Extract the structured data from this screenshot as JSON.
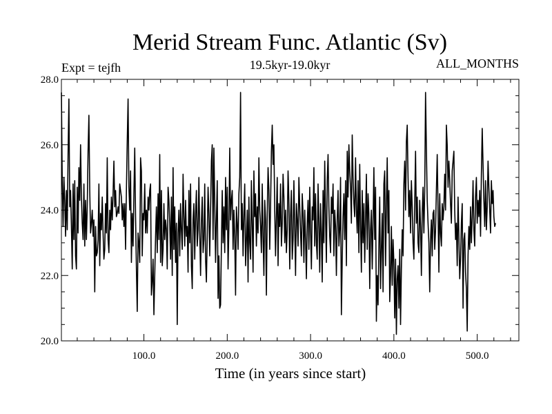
{
  "chart_data": {
    "type": "line",
    "title": "Merid Stream Func. Atlantic (Sv)",
    "subtitle": "19.5kyr-19.0kyr",
    "left_label": "Expt = tejfh",
    "right_label": "ALL_MONTHS",
    "xlabel": "Time (in years since start)",
    "ylabel": "",
    "xlim": [
      1,
      550
    ],
    "ylim": [
      20.0,
      28.0
    ],
    "x_ticks": [
      100,
      200,
      300,
      400,
      500
    ],
    "x_tick_labels": [
      "100.0",
      "200.0",
      "300.0",
      "400.0",
      "500.0"
    ],
    "y_ticks": [
      20,
      22,
      24,
      26,
      28
    ],
    "y_tick_labels": [
      "20.0",
      "22.0",
      "24.0",
      "26.0",
      "28.0"
    ],
    "grid": false,
    "line_color": "#000000",
    "series": [
      {
        "x_start": 1,
        "x_step": 1,
        "values": [
          27.6,
          24.9,
          23.5,
          25.0,
          24.3,
          23.2,
          24.6,
          23.4,
          25.7,
          27.4,
          24.1,
          24.6,
          23.5,
          22.2,
          24.8,
          23.1,
          24.9,
          22.6,
          22.2,
          24.7,
          23.3,
          25.3,
          24.3,
          26.0,
          24.4,
          23.6,
          23.1,
          24.8,
          22.9,
          24.3,
          23.1,
          24.1,
          25.8,
          26.9,
          24.6,
          23.3,
          23.6,
          24.0,
          23.2,
          23.7,
          21.5,
          23.5,
          22.6,
          22.7,
          23.1,
          24.8,
          22.3,
          23.9,
          23.4,
          24.4,
          23.3,
          22.5,
          22.8,
          24.2,
          23.3,
          25.6,
          23.1,
          22.7,
          24.0,
          23.4,
          24.4,
          23.7,
          24.5,
          25.5,
          24.1,
          24.6,
          23.8,
          23.9,
          24.1,
          23.9,
          24.8,
          24.6,
          24.4,
          23.7,
          24.2,
          23.5,
          24.2,
          22.8,
          24.6,
          26.1,
          27.4,
          24.7,
          24.0,
          25.2,
          22.4,
          23.9,
          22.9,
          24.5,
          25.9,
          23.8,
          22.2,
          20.9,
          23.3,
          23.0,
          22.4,
          25.6,
          25.2,
          22.6,
          23.9,
          23.7,
          24.8,
          23.3,
          24.0,
          23.3,
          24.4,
          24.0,
          24.6,
          24.8,
          21.4,
          21.8,
          22.5,
          20.8,
          22.0,
          23.2,
          24.1,
          22.7,
          24.5,
          23.1,
          25.7,
          22.4,
          24.6,
          22.3,
          22.8,
          24.2,
          23.1,
          23.7,
          23.4,
          22.2,
          24.7,
          24.3,
          23.6,
          22.5,
          24.4,
          22.0,
          25.3,
          22.8,
          24.1,
          22.4,
          23.6,
          20.5,
          23.3,
          24.0,
          22.6,
          24.2,
          23.4,
          22.8,
          25.1,
          23.8,
          22.9,
          24.3,
          23.2,
          23.5,
          22.1,
          24.6,
          23.0,
          24.8,
          22.3,
          21.6,
          23.7,
          24.2,
          22.5,
          23.9,
          24.6,
          22.9,
          23.4,
          25.0,
          23.3,
          22.0,
          23.6,
          24.4,
          22.7,
          23.1,
          24.8,
          22.5,
          21.8,
          23.2,
          24.7,
          23.9,
          22.6,
          24.0,
          25.5,
          26.0,
          23.1,
          25.9,
          24.2,
          22.4,
          23.7,
          24.9,
          21.3,
          22.6,
          21.0,
          21.1,
          22.9,
          24.6,
          23.0,
          24.1,
          22.7,
          25.0,
          23.4,
          24.7,
          22.2,
          23.5,
          25.9,
          23.7,
          24.3,
          24.6,
          22.8,
          24.0,
          23.2,
          21.4,
          24.1,
          23.6,
          22.8,
          24.5,
          25.0,
          27.6,
          23.4,
          24.2,
          22.6,
          23.9,
          24.8,
          22.3,
          23.1,
          24.0,
          21.8,
          24.4,
          23.0,
          22.5,
          24.9,
          23.6,
          22.1,
          25.2,
          23.8,
          24.5,
          22.9,
          24.1,
          23.3,
          25.6,
          24.0,
          23.5,
          22.7,
          24.8,
          23.2,
          22.0,
          24.3,
          23.7,
          21.4,
          23.9,
          25.3,
          24.6,
          22.8,
          24.1,
          25.8,
          26.6,
          25.4,
          26.0,
          24.0,
          22.6,
          23.8,
          25.0,
          22.3,
          24.2,
          23.5,
          24.8,
          22.9,
          23.6,
          25.1,
          24.4,
          23.0,
          24.0,
          22.7,
          23.4,
          25.2,
          24.3,
          22.2,
          23.8,
          24.6,
          22.5,
          23.1,
          24.9,
          23.5,
          22.0,
          24.2,
          23.7,
          22.9,
          25.0,
          24.1,
          23.3,
          22.6,
          24.5,
          23.9,
          22.4,
          24.0,
          23.1,
          21.9,
          23.6,
          24.3,
          22.8,
          24.7,
          23.4,
          22.2,
          24.1,
          23.7,
          25.3,
          22.9,
          24.5,
          23.0,
          22.5,
          24.8,
          23.6,
          22.1,
          24.2,
          23.3,
          21.8,
          24.6,
          23.0,
          25.5,
          23.8,
          22.4,
          24.9,
          25.7,
          24.1,
          23.2,
          22.7,
          24.4,
          23.9,
          24.8,
          22.6,
          24.0,
          23.5,
          22.0,
          23.7,
          24.6,
          22.9,
          23.4,
          25.0,
          20.8,
          22.5,
          23.8,
          24.5,
          23.1,
          24.9,
          22.3,
          25.8,
          24.4,
          26.0,
          25.2,
          24.7,
          23.6,
          26.3,
          25.0,
          24.2,
          23.8,
          25.6,
          24.0,
          23.3,
          24.9,
          22.7,
          25.4,
          23.5,
          22.1,
          24.6,
          23.0,
          24.2,
          22.4,
          23.7,
          25.1,
          22.8,
          24.5,
          23.9,
          21.6,
          23.4,
          24.0,
          22.2,
          23.6,
          25.3,
          23.1,
          24.7,
          20.6,
          22.0,
          21.1,
          22.9,
          24.4,
          21.6,
          22.8,
          23.9,
          21.5,
          24.8,
          25.2,
          22.3,
          24.1,
          25.6,
          23.3,
          24.6,
          21.2,
          22.0,
          23.5,
          21.7,
          23.1,
          22.4,
          20.7,
          22.5,
          20.2,
          21.9,
          22.3,
          21.0,
          22.8,
          20.5,
          22.2,
          23.4,
          22.6,
          24.8,
          25.5,
          24.0,
          26.1,
          26.6,
          25.0,
          23.8,
          24.6,
          23.3,
          24.9,
          24.1,
          23.0,
          22.5,
          24.2,
          25.8,
          23.6,
          24.4,
          23.0,
          22.7,
          24.3,
          23.5,
          22.0,
          23.9,
          24.7,
          23.3,
          24.6,
          27.6,
          25.9,
          24.3,
          23.6,
          23.0,
          21.5,
          23.1,
          23.7,
          22.6,
          23.9,
          24.0,
          22.8,
          23.4,
          24.6,
          25.7,
          24.0,
          22.1,
          24.5,
          23.3,
          22.9,
          24.2,
          23.7,
          24.1,
          25.1,
          24.0,
          26.6,
          26.0,
          24.7,
          25.5,
          24.9,
          24.2,
          23.6,
          25.2,
          25.5,
          25.8,
          24.0,
          23.1,
          23.6,
          22.3,
          24.4,
          23.2,
          21.9,
          22.5,
          23.6,
          24.2,
          21.0,
          23.1,
          23.3,
          22.1,
          21.6,
          20.3,
          22.6,
          23.5,
          22.8,
          24.1,
          23.0,
          23.8,
          24.9,
          23.4,
          22.9,
          24.4,
          25.0,
          23.6,
          24.3,
          23.8,
          24.6,
          23.2,
          25.1,
          26.5,
          25.4,
          24.3,
          23.5,
          24.9,
          23.4,
          24.1,
          25.5,
          24.7,
          24.0,
          23.3,
          24.9,
          24.2,
          24.6,
          23.8,
          23.5,
          23.6
        ]
      }
    ]
  }
}
